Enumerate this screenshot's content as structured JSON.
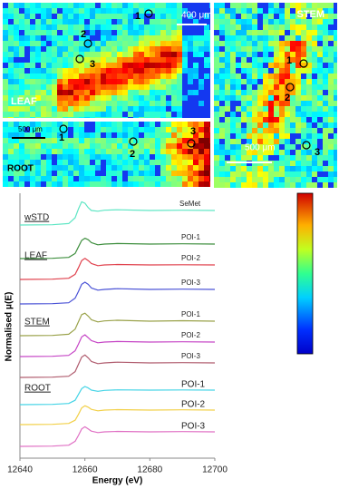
{
  "maps": [
    {
      "name": "LEAF",
      "scale": "400 μm",
      "points": [
        "1",
        "2",
        "3"
      ]
    },
    {
      "name": "STEM",
      "scale": "500 μm",
      "points": [
        "1",
        "2",
        "3"
      ]
    },
    {
      "name": "ROOT",
      "scale": "500 μm",
      "points": [
        "1",
        "2",
        "3"
      ]
    }
  ],
  "chart_data": {
    "type": "line",
    "xlabel": "Energy (eV)",
    "ylabel": "Normalised μ(E)",
    "x": [
      12640,
      12650,
      12655,
      12657,
      12658,
      12659,
      12660,
      12661,
      12662,
      12664,
      12666,
      12670,
      12680,
      12690,
      12700
    ],
    "xlim": [
      12640,
      12700
    ],
    "xticks": [
      12640,
      12660,
      12680,
      12700
    ],
    "groups": [
      {
        "name": "wSTD",
        "series": [
          {
            "name": "SeMet",
            "color": "#5ee6c4",
            "values": [
              0,
              0.02,
              0.1,
              0.5,
              1.1,
              1.6,
              1.5,
              1.2,
              1.0,
              0.95,
              1.02,
              1.05,
              1.0,
              1.02,
              1.0
            ]
          }
        ]
      },
      {
        "name": "LEAF",
        "series": [
          {
            "name": "POI-1",
            "color": "#3f8f3f",
            "values": [
              0,
              0.02,
              0.08,
              0.35,
              0.8,
              1.25,
              1.4,
              1.3,
              1.1,
              0.95,
              1.0,
              1.04,
              1.0,
              1.02,
              1.0
            ]
          },
          {
            "name": "POI-2",
            "color": "#e0404c",
            "values": [
              0,
              0.02,
              0.08,
              0.35,
              0.8,
              1.3,
              1.45,
              1.3,
              1.1,
              0.95,
              1.0,
              1.03,
              1.0,
              1.01,
              1.0
            ]
          },
          {
            "name": "POI-3",
            "color": "#4a52d6",
            "values": [
              0,
              0.02,
              0.08,
              0.4,
              0.85,
              1.35,
              1.5,
              1.35,
              1.1,
              0.95,
              1.0,
              1.05,
              1.0,
              1.02,
              1.0
            ]
          }
        ]
      },
      {
        "name": "STEM",
        "series": [
          {
            "name": "POI-1",
            "color": "#9aa24a",
            "values": [
              0,
              0.02,
              0.1,
              0.45,
              0.95,
              1.45,
              1.55,
              1.35,
              1.1,
              0.95,
              1.02,
              1.06,
              1.0,
              1.03,
              1.0
            ]
          },
          {
            "name": "POI-2",
            "color": "#c646c6",
            "values": [
              0,
              0.02,
              0.08,
              0.4,
              0.85,
              1.35,
              1.5,
              1.3,
              1.1,
              0.95,
              1.0,
              1.04,
              1.0,
              1.02,
              1.0
            ]
          },
          {
            "name": "POI-3",
            "color": "#b05c6e",
            "values": [
              0,
              0.02,
              0.08,
              0.4,
              0.9,
              1.4,
              1.55,
              1.35,
              1.1,
              0.95,
              1.0,
              1.05,
              1.0,
              1.02,
              1.0
            ]
          }
        ]
      },
      {
        "name": "ROOT",
        "series": [
          {
            "name": "POI-1",
            "color": "#44d4e6",
            "values": [
              0,
              0.02,
              0.08,
              0.3,
              0.7,
              1.1,
              1.25,
              1.15,
              1.0,
              0.92,
              0.98,
              1.02,
              1.0,
              1.01,
              1.0
            ]
          },
          {
            "name": "POI-2",
            "color": "#f2d048",
            "values": [
              0,
              0.02,
              0.08,
              0.3,
              0.7,
              1.15,
              1.3,
              1.2,
              1.05,
              0.95,
              1.0,
              1.03,
              1.0,
              1.02,
              1.0
            ]
          },
          {
            "name": "POI-3",
            "color": "#e070c4",
            "values": [
              0,
              0.02,
              0.08,
              0.35,
              0.75,
              1.2,
              1.35,
              1.2,
              1.05,
              0.95,
              1.0,
              1.03,
              1.0,
              1.02,
              1.0
            ]
          }
        ]
      }
    ]
  }
}
